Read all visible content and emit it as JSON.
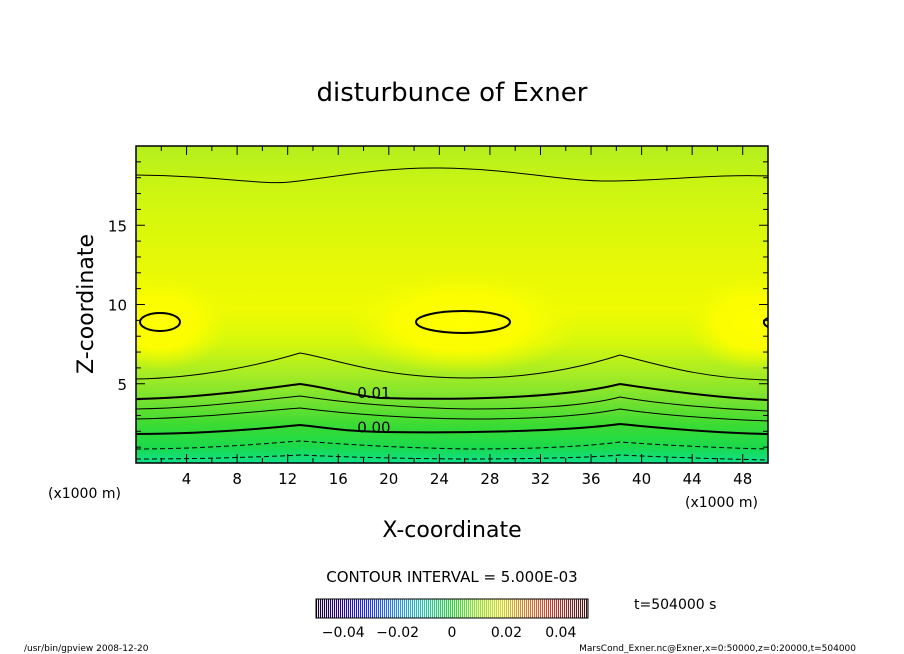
{
  "chart_data": {
    "type": "heatmap",
    "title": "disturbunce of Exner",
    "xlabel": "X-coordinate",
    "ylabel": "Z-coordinate",
    "x_unit_left": "(x1000 m)",
    "x_unit_right": "(x1000 m)",
    "xlim": [
      0,
      50
    ],
    "ylim": [
      0,
      20
    ],
    "xticks": [
      4,
      8,
      12,
      16,
      20,
      24,
      28,
      32,
      36,
      40,
      44,
      48
    ],
    "yticks": [
      5,
      10,
      15
    ],
    "contour_labels": [
      {
        "text": "0.01",
        "x": 17.5,
        "y": 4.3
      },
      {
        "text": "0.00",
        "x": 17.5,
        "y": 2.1
      }
    ],
    "contour_interval_label": "CONTOUR INTERVAL = 5.000E-03",
    "colorbar": {
      "range": [
        -0.05,
        0.05
      ],
      "ticks": [
        {
          "value": -0.04,
          "label": "−0.04"
        },
        {
          "value": -0.02,
          "label": "−0.02"
        },
        {
          "value": 0,
          "label": "0"
        },
        {
          "value": 0.02,
          "label": "0.02"
        },
        {
          "value": 0.04,
          "label": "0.04"
        }
      ]
    },
    "time_label": "t=504000 s"
  },
  "footer": {
    "left": "/usr/bin/gpview   2008-12-20",
    "right": "MarsCond_Exner.nc@Exner,x=0:50000,z=0:20000,t=504000"
  }
}
